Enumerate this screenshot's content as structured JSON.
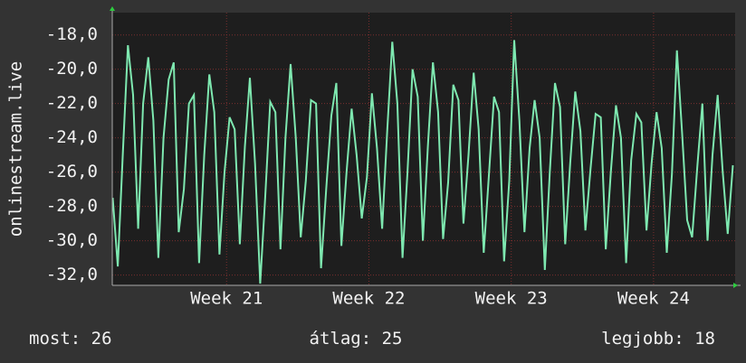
{
  "chart_data": {
    "type": "line",
    "y_label": "onlinestream.live",
    "xlim": [
      20.197,
      24.573
    ],
    "xticks": [
      {
        "value": 21,
        "label": "Week 21"
      },
      {
        "value": 22,
        "label": "Week 22"
      },
      {
        "value": 23,
        "label": "Week 23"
      },
      {
        "value": 24,
        "label": "Week 24"
      }
    ],
    "ylim": [
      -32.6,
      -16.7
    ],
    "yticks": [
      {
        "value": -32,
        "label": "-32,0"
      },
      {
        "value": -30,
        "label": "-30,0"
      },
      {
        "value": -28,
        "label": "-28,0"
      },
      {
        "value": -26,
        "label": "-26,0"
      },
      {
        "value": -24,
        "label": "-24,0"
      },
      {
        "value": -22,
        "label": "-22,0"
      },
      {
        "value": -20,
        "label": "-20,0"
      },
      {
        "value": -18,
        "label": "-18,0"
      }
    ],
    "grid": true,
    "x": [
      20.2,
      20.236,
      20.271,
      20.307,
      20.343,
      20.379,
      20.414,
      20.45,
      20.486,
      20.521,
      20.557,
      20.593,
      20.629,
      20.664,
      20.7,
      20.736,
      20.771,
      20.807,
      20.843,
      20.879,
      20.914,
      20.95,
      20.986,
      21.021,
      21.057,
      21.093,
      21.129,
      21.164,
      21.2,
      21.236,
      21.271,
      21.307,
      21.343,
      21.379,
      21.414,
      21.45,
      21.486,
      21.521,
      21.557,
      21.593,
      21.629,
      21.664,
      21.7,
      21.736,
      21.771,
      21.807,
      21.843,
      21.879,
      21.914,
      21.95,
      21.986,
      22.021,
      22.057,
      22.093,
      22.129,
      22.164,
      22.2,
      22.236,
      22.271,
      22.307,
      22.343,
      22.379,
      22.414,
      22.45,
      22.486,
      22.521,
      22.557,
      22.593,
      22.629,
      22.664,
      22.7,
      22.736,
      22.771,
      22.807,
      22.843,
      22.879,
      22.914,
      22.95,
      22.986,
      23.021,
      23.057,
      23.093,
      23.129,
      23.164,
      23.2,
      23.236,
      23.271,
      23.307,
      23.343,
      23.379,
      23.414,
      23.45,
      23.486,
      23.521,
      23.557,
      23.593,
      23.629,
      23.664,
      23.7,
      23.736,
      23.771,
      23.807,
      23.843,
      23.879,
      23.914,
      23.95,
      23.986,
      24.021,
      24.057,
      24.093,
      24.129,
      24.164,
      24.2,
      24.236,
      24.271,
      24.307,
      24.343,
      24.379,
      24.414,
      24.45,
      24.486,
      24.521,
      24.557
    ],
    "series": [
      {
        "color": "#7ee8b0",
        "values": [
          -27.5,
          -31.5,
          -25,
          -18.6,
          -21.5,
          -29.3,
          -22,
          -19.3,
          -23,
          -31,
          -24,
          -20.6,
          -19.6,
          -29.5,
          -27,
          -22,
          -21.5,
          -31.3,
          -25,
          -20.3,
          -22.5,
          -30.8,
          -26,
          -22.8,
          -23.5,
          -30.2,
          -24.5,
          -20.5,
          -25.5,
          -32.5,
          -27.5,
          -21.9,
          -22.5,
          -30.5,
          -24,
          -19.7,
          -24,
          -29.8,
          -26.5,
          -21.8,
          -22,
          -31.6,
          -27,
          -22.7,
          -20.8,
          -30.3,
          -26,
          -22.3,
          -25,
          -28.7,
          -26.3,
          -21.4,
          -24.6,
          -29.3,
          -23.5,
          -18.4,
          -22,
          -31,
          -26,
          -20,
          -21.6,
          -30,
          -24.5,
          -19.6,
          -22.5,
          -29.9,
          -26.6,
          -20.9,
          -21.8,
          -29,
          -25,
          -20.2,
          -23.5,
          -30.7,
          -26.2,
          -21.6,
          -22.5,
          -31.2,
          -26.5,
          -18.3,
          -23,
          -29.5,
          -24.6,
          -21.8,
          -24,
          -31.7,
          -26,
          -20.8,
          -22.2,
          -30.2,
          -25.5,
          -21.3,
          -23.6,
          -29.4,
          -25.8,
          -22.6,
          -22.8,
          -30.5,
          -26,
          -22.1,
          -24,
          -31.3,
          -25.3,
          -22.6,
          -23.1,
          -29.4,
          -25.5,
          -22.5,
          -24.6,
          -30.7,
          -26.1,
          -18.9,
          -23.7,
          -28.8,
          -29.8,
          -25.7,
          -22,
          -30,
          -25,
          -21.5,
          -26,
          -29.6,
          -25.6
        ]
      }
    ],
    "footer": [
      {
        "label": "most:",
        "value": 26
      },
      {
        "label": "átlag:",
        "value": 25
      },
      {
        "label": "legjobb:",
        "value": 18
      }
    ]
  }
}
